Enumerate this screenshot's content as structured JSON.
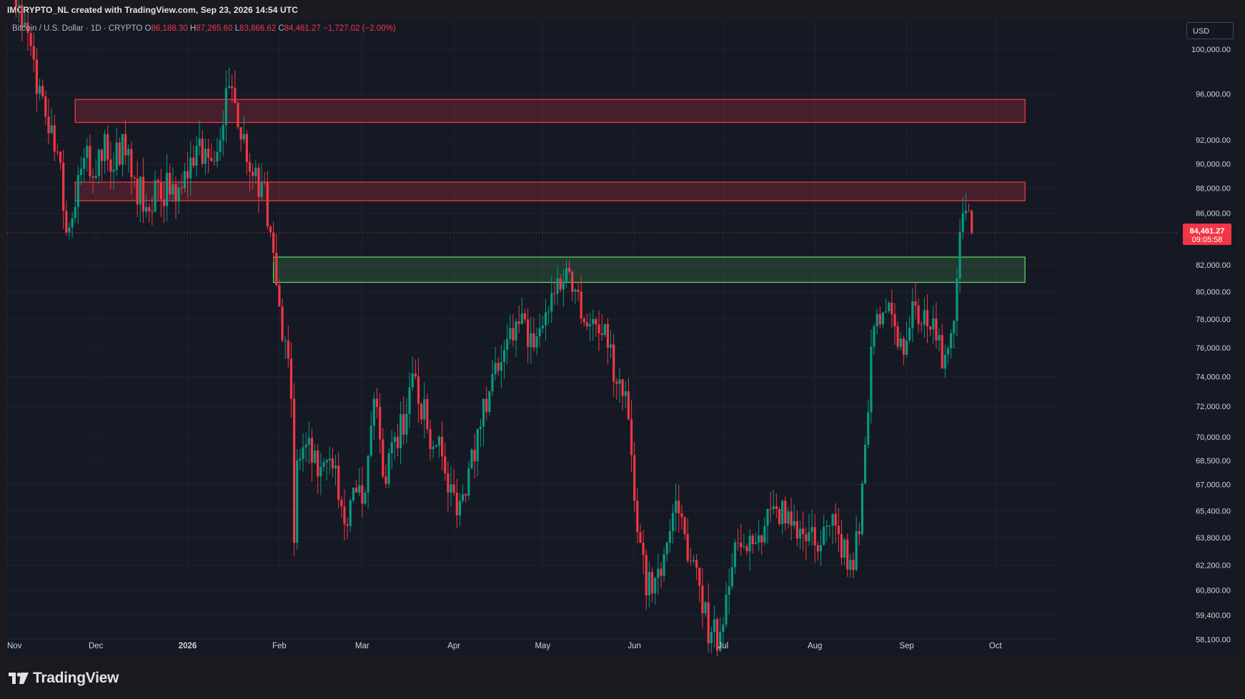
{
  "header": {
    "created_by": "IMCRYPTO_NL created with TradingView.com, Sep 23, 2026 14:54 UTC"
  },
  "legend": {
    "symbol": "Bitcoin / U.S. Dollar · 1D · CRYPTO",
    "o_label": "O",
    "o_value": "86,188.30",
    "h_label": "H",
    "h_value": "87,265.60",
    "l_label": "L",
    "l_value": "83,866.62",
    "c_label": "C",
    "c_value": "84,461.27",
    "change": "−1,727.02 (−2.00%)"
  },
  "currency_button": "USD",
  "price_tag": {
    "price": "84,461.27",
    "countdown": "09:05:58"
  },
  "brand": {
    "logo_text": "TradingView"
  },
  "colors": {
    "up": "#089981",
    "down": "#f23645",
    "background": "#151924",
    "grid": "#1f2331"
  },
  "chart_data": {
    "type": "candlestick",
    "y_axis": {
      "ticks": [
        100000,
        96000,
        92000,
        90000,
        88000,
        86000,
        82000,
        80000,
        78000,
        76000,
        74000,
        72000,
        70000,
        68500,
        67000,
        65400,
        63800,
        62200,
        60800,
        59400,
        58100
      ],
      "tick_labels": [
        "100,000.00",
        "96,000.00",
        "92,000.00",
        "90,000.00",
        "88,000.00",
        "86,000.00",
        "82,000.00",
        "80,000.00",
        "78,000.00",
        "76,000.00",
        "74,000.00",
        "72,000.00",
        "70,000.00",
        "68,500.00",
        "67,000.00",
        "65,400.00",
        "63,800.00",
        "62,200.00",
        "60,800.00",
        "59,400.00",
        "58,100.00"
      ],
      "scale": "log"
    },
    "x_axis": {
      "labels": [
        "Nov",
        "Dec",
        "2026",
        "Feb",
        "Mar",
        "Apr",
        "May",
        "Jun",
        "Jul",
        "Aug",
        "Sep",
        "Oct"
      ],
      "label_dates": [
        "2025-11-01",
        "2025-12-01",
        "2026-01-01",
        "2026-02-01",
        "2026-03-01",
        "2026-04-01",
        "2026-05-01",
        "2026-06-01",
        "2026-07-01",
        "2026-08-01",
        "2026-09-01",
        "2026-10-01"
      ]
    },
    "last_price": 84461.27,
    "zones": [
      {
        "type": "resistance",
        "from": "2025-11-24",
        "to": "2026-10-11",
        "low": 93500,
        "high": 95500
      },
      {
        "type": "resistance",
        "from": "2025-11-24",
        "to": "2026-10-11",
        "low": 87000,
        "high": 88500
      },
      {
        "type": "support",
        "from": "2026-01-30",
        "to": "2026-10-11",
        "low": 80700,
        "high": 82600
      }
    ],
    "close_anchors": [
      [
        "2025-11-01",
        110000
      ],
      [
        "2025-11-04",
        104000
      ],
      [
        "2025-11-07",
        102500
      ],
      [
        "2025-11-11",
        96000
      ],
      [
        "2025-11-14",
        94000
      ],
      [
        "2025-11-18",
        91000
      ],
      [
        "2025-11-21",
        84500
      ],
      [
        "2025-11-24",
        86500
      ],
      [
        "2025-11-27",
        90500
      ],
      [
        "2025-12-01",
        89000
      ],
      [
        "2025-12-04",
        92500
      ],
      [
        "2025-12-07",
        89500
      ],
      [
        "2025-12-10",
        92500
      ],
      [
        "2025-12-14",
        88800
      ],
      [
        "2025-12-18",
        86500
      ],
      [
        "2025-12-22",
        88500
      ],
      [
        "2025-12-26",
        87500
      ],
      [
        "2025-12-30",
        88000
      ],
      [
        "2026-01-04",
        91500
      ],
      [
        "2026-01-08",
        90500
      ],
      [
        "2026-01-11",
        91000
      ],
      [
        "2026-01-14",
        96500
      ],
      [
        "2026-01-17",
        95200
      ],
      [
        "2026-01-20",
        92500
      ],
      [
        "2026-01-23",
        89000
      ],
      [
        "2026-01-26",
        88500
      ],
      [
        "2026-01-29",
        84500
      ],
      [
        "2026-01-31",
        80500
      ],
      [
        "2026-02-03",
        76500
      ],
      [
        "2026-02-05",
        72500
      ],
      [
        "2026-02-06",
        63500
      ],
      [
        "2026-02-07",
        68500
      ],
      [
        "2026-02-10",
        69500
      ],
      [
        "2026-02-14",
        67500
      ],
      [
        "2026-02-19",
        68000
      ],
      [
        "2026-02-24",
        64500
      ],
      [
        "2026-02-27",
        66500
      ],
      [
        "2026-03-02",
        66500
      ],
      [
        "2026-03-05",
        72500
      ],
      [
        "2026-03-08",
        67500
      ],
      [
        "2026-03-12",
        70000
      ],
      [
        "2026-03-16",
        71500
      ],
      [
        "2026-03-19",
        74000
      ],
      [
        "2026-03-23",
        70500
      ],
      [
        "2026-03-27",
        70000
      ],
      [
        "2026-03-30",
        66500
      ],
      [
        "2026-04-03",
        66000
      ],
      [
        "2026-04-06",
        68000
      ],
      [
        "2026-04-09",
        70500
      ],
      [
        "2026-04-13",
        73000
      ],
      [
        "2026-04-17",
        75000
      ],
      [
        "2026-04-21",
        76500
      ],
      [
        "2026-04-25",
        78000
      ],
      [
        "2026-04-28",
        76000
      ],
      [
        "2026-05-02",
        78500
      ],
      [
        "2026-05-06",
        81000
      ],
      [
        "2026-05-10",
        81500
      ],
      [
        "2026-05-13",
        80000
      ],
      [
        "2026-05-16",
        77500
      ],
      [
        "2026-05-20",
        77000
      ],
      [
        "2026-05-23",
        76000
      ],
      [
        "2026-05-26",
        73500
      ],
      [
        "2026-05-29",
        73000
      ],
      [
        "2026-06-01",
        66000
      ],
      [
        "2026-06-03",
        63500
      ],
      [
        "2026-06-05",
        60500
      ],
      [
        "2026-06-09",
        62000
      ],
      [
        "2026-06-12",
        63500
      ],
      [
        "2026-06-15",
        66000
      ],
      [
        "2026-06-18",
        64000
      ],
      [
        "2026-06-21",
        62500
      ],
      [
        "2026-06-24",
        59500
      ],
      [
        "2026-06-27",
        58500
      ],
      [
        "2026-06-30",
        58500
      ],
      [
        "2026-07-03",
        61000
      ],
      [
        "2026-07-06",
        63500
      ],
      [
        "2026-07-09",
        63000
      ],
      [
        "2026-07-12",
        63500
      ],
      [
        "2026-07-15",
        64500
      ],
      [
        "2026-07-19",
        65500
      ],
      [
        "2026-07-21",
        66000
      ],
      [
        "2026-07-24",
        64500
      ],
      [
        "2026-07-28",
        64000
      ],
      [
        "2026-08-02",
        63000
      ],
      [
        "2026-08-05",
        64500
      ],
      [
        "2026-08-09",
        64000
      ],
      [
        "2026-08-13",
        62500
      ],
      [
        "2026-08-16",
        64000
      ],
      [
        "2026-08-18",
        69500
      ],
      [
        "2026-08-21",
        77500
      ],
      [
        "2026-08-24",
        78500
      ],
      [
        "2026-08-28",
        77500
      ],
      [
        "2026-09-01",
        76500
      ],
      [
        "2026-09-04",
        79000
      ],
      [
        "2026-09-08",
        77500
      ],
      [
        "2026-09-11",
        76500
      ],
      [
        "2026-09-14",
        75500
      ],
      [
        "2026-09-16",
        77000
      ],
      [
        "2026-09-18",
        81000
      ],
      [
        "2026-09-20",
        86000
      ],
      [
        "2026-09-21",
        86200
      ],
      [
        "2026-09-22",
        86188.3
      ],
      [
        "2026-09-23",
        84461.27
      ]
    ]
  }
}
